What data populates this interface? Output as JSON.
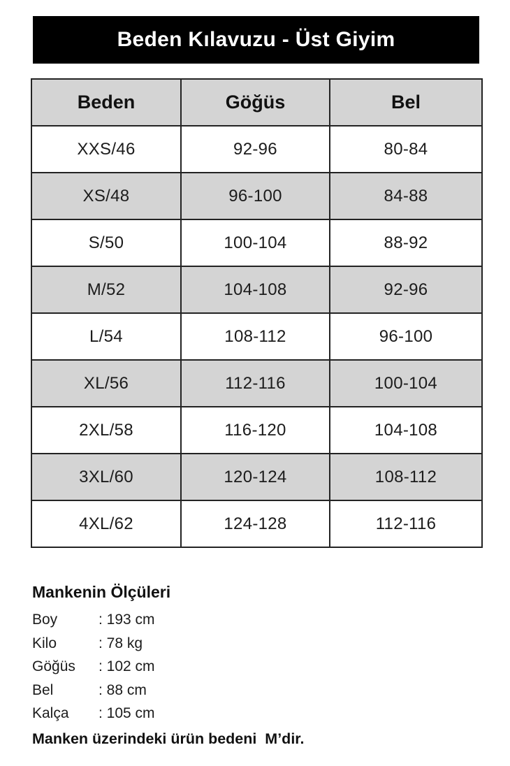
{
  "title": "Beden Kılavuzu - Üst Giyim",
  "table": {
    "headers": [
      "Beden",
      "Göğüs",
      "Bel"
    ],
    "rows": [
      [
        "XXS/46",
        "92-96",
        "80-84"
      ],
      [
        "XS/48",
        "96-100",
        "84-88"
      ],
      [
        "S/50",
        "100-104",
        "88-92"
      ],
      [
        "M/52",
        "104-108",
        "92-96"
      ],
      [
        "L/54",
        "108-112",
        "96-100"
      ],
      [
        "XL/56",
        "112-116",
        "100-104"
      ],
      [
        "2XL/58",
        "116-120",
        "104-108"
      ],
      [
        "3XL/60",
        "120-124",
        "108-112"
      ],
      [
        "4XL/62",
        "124-128",
        "112-116"
      ]
    ]
  },
  "measurements": {
    "heading": "Mankenin Ölçüleri",
    "items": [
      {
        "label": "Boy",
        "value": ": 193 cm"
      },
      {
        "label": "Kilo",
        "value": ": 78 kg"
      },
      {
        "label": "Göğüs",
        "value": ": 102 cm"
      },
      {
        "label": "Bel",
        "value": ": 88 cm"
      },
      {
        "label": "Kalça",
        "value": ": 105 cm"
      }
    ],
    "note": "Manken üzerindeki ürün bedeni  M’dir."
  },
  "colors": {
    "title_bar_bg": "#000000",
    "title_text": "#ffffff",
    "row_alt_bg": "#d4d4d4",
    "border": "#232323"
  }
}
